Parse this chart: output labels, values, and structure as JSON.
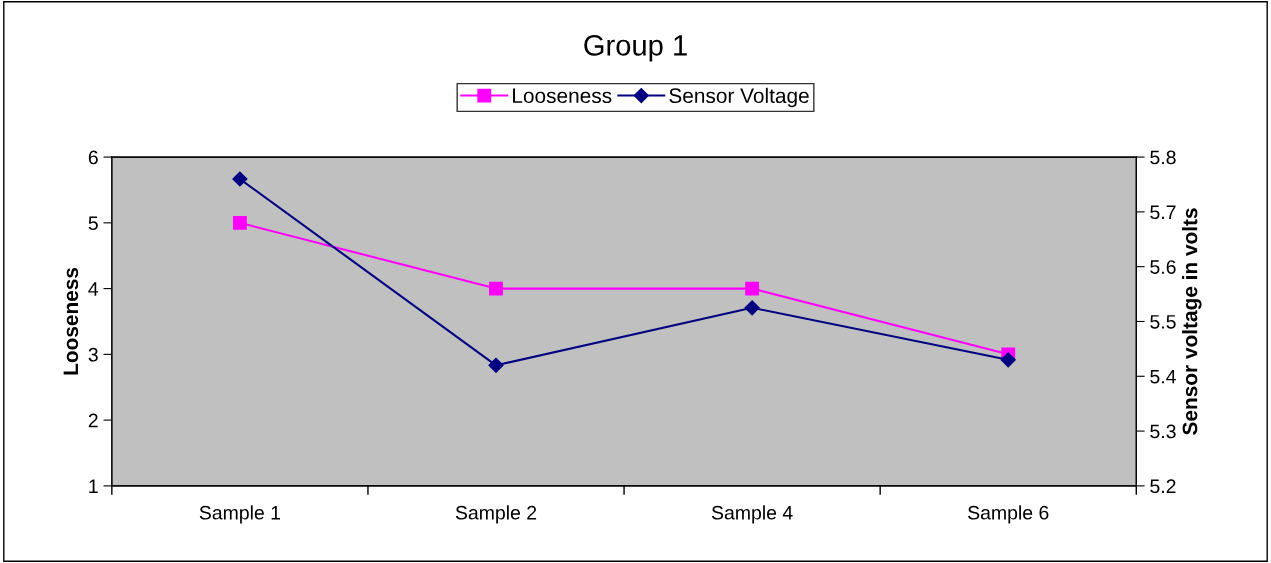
{
  "chart_data": {
    "type": "line",
    "title": "Group 1",
    "categories": [
      "Sample 1",
      "Sample 2",
      "Sample 4",
      "Sample 6"
    ],
    "series": [
      {
        "name": "Looseness",
        "color": "#ff00ff",
        "marker": "square",
        "values": [
          5,
          4,
          4,
          3
        ]
      },
      {
        "name": "Sensor Voltage",
        "color": "#000080",
        "marker": "diamond",
        "axis": "y2",
        "values": [
          5.76,
          5.42,
          5.525,
          5.43
        ]
      }
    ],
    "ylabel": "Looseness",
    "y2label": "Sensor voltage in volts",
    "ylim": [
      1,
      6
    ],
    "yticks": [
      1,
      2,
      3,
      4,
      5,
      6
    ],
    "y2lim": [
      5.2,
      5.8
    ],
    "y2ticks": [
      5.2,
      5.3,
      5.4,
      5.5,
      5.6,
      5.7,
      5.8
    ],
    "grid": false,
    "legend": "top",
    "line_style": "solid"
  }
}
